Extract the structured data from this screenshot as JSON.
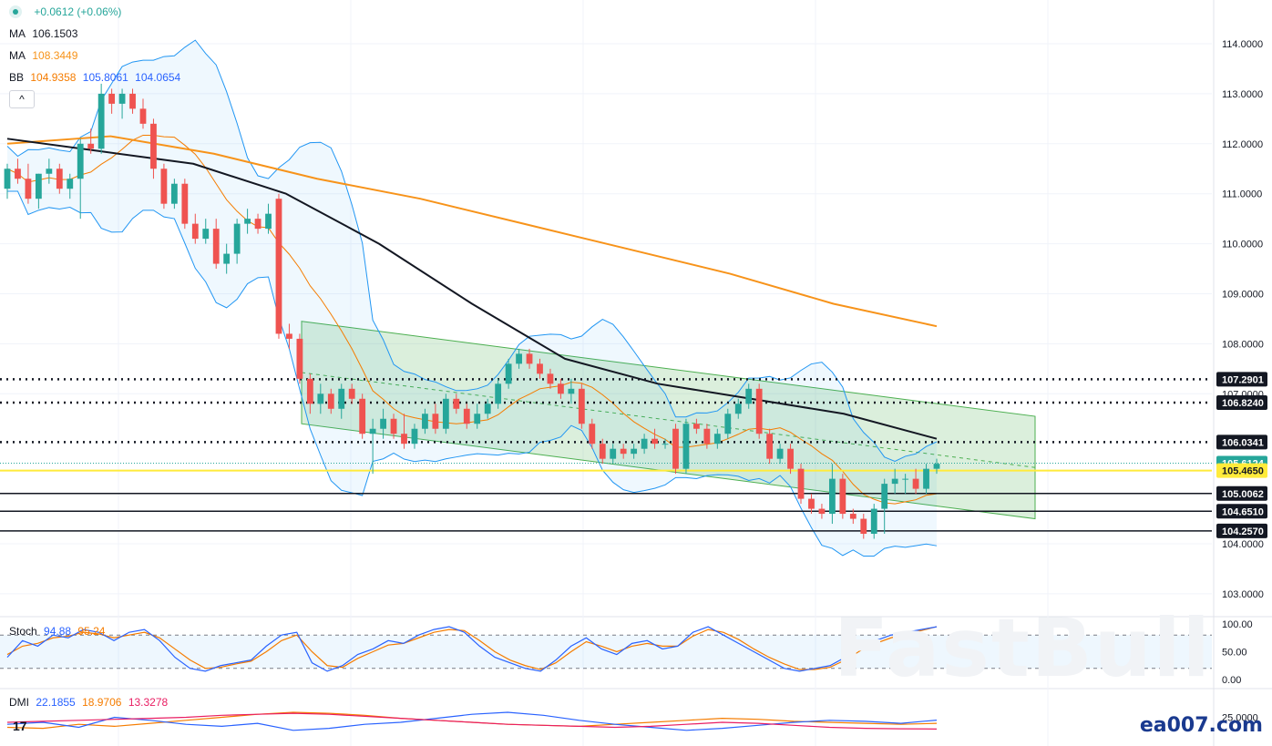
{
  "header": {
    "change": "+0.0612 (+0.06%)",
    "ma1_label": "MA",
    "ma1_value": "106.1503",
    "ma2_label": "MA",
    "ma2_value": "108.3449",
    "bb_label": "BB",
    "bb_basis": "104.9358",
    "bb_upper": "105.8061",
    "bb_lower": "104.0654",
    "collapse": "^"
  },
  "stoch": {
    "label": "Stoch",
    "k": "94.88",
    "d": "95.24"
  },
  "dmi": {
    "label": "DMI",
    "plus": "22.1855",
    "minus": "18.9706",
    "adx": "13.3278"
  },
  "watermark": {
    "brand": "FastBull",
    "site": "ea007.com"
  },
  "platform_logo": "17",
  "colors": {
    "up": "#26a69a",
    "down": "#ef5350",
    "ma_fast": "#131722",
    "ma_slow": "#f7931a",
    "bb": "#2962ff",
    "bb_basis": "#f57c00",
    "channel": "#4caf50",
    "highlight": "#ffeb3b"
  },
  "chart_data": [
    {
      "type": "candlestick",
      "y_axis_ticks": [
        "114.0000",
        "113.0000",
        "112.0000",
        "111.0000",
        "110.0000",
        "109.0000",
        "108.0000",
        "107.0000",
        "104.0000",
        "103.0000"
      ],
      "ylim": [
        102.5,
        114.6
      ],
      "price_tags": [
        {
          "value": "107.2901",
          "style": "dotted",
          "color": "#131722"
        },
        {
          "value": "106.8240",
          "style": "dotted",
          "color": "#131722"
        },
        {
          "value": "106.0341",
          "style": "dotted",
          "color": "#131722"
        },
        {
          "value": "105.6124",
          "style": "current",
          "color": "#26a69a"
        },
        {
          "value": "105.4650",
          "style": "solid",
          "color": "#ffeb3b"
        },
        {
          "value": "105.0062",
          "style": "solid",
          "color": "#131722"
        },
        {
          "value": "104.6510",
          "style": "solid",
          "color": "#131722"
        },
        {
          "value": "104.2570",
          "style": "solid",
          "color": "#131722"
        }
      ],
      "channel": {
        "upper_start": 108.45,
        "upper_end": 106.55,
        "lower_start": 106.4,
        "lower_end": 104.5
      },
      "ma_fast_path": [
        112.1,
        111.85,
        111.6,
        111.0,
        110.0,
        108.8,
        107.7,
        107.2,
        106.9,
        106.6,
        106.1
      ],
      "ma_slow_path": [
        112.0,
        112.15,
        111.8,
        111.3,
        110.9,
        110.4,
        109.9,
        109.4,
        108.8,
        108.35
      ],
      "candles": [
        {
          "o": 111.1,
          "h": 111.6,
          "l": 110.9,
          "c": 111.5
        },
        {
          "o": 111.5,
          "h": 111.7,
          "l": 111.2,
          "c": 111.3
        },
        {
          "o": 111.3,
          "h": 111.6,
          "l": 110.8,
          "c": 110.9
        },
        {
          "o": 110.9,
          "h": 111.4,
          "l": 110.7,
          "c": 111.4
        },
        {
          "o": 111.4,
          "h": 111.7,
          "l": 111.2,
          "c": 111.5
        },
        {
          "o": 111.5,
          "h": 111.6,
          "l": 111.0,
          "c": 111.1
        },
        {
          "o": 111.1,
          "h": 111.4,
          "l": 110.9,
          "c": 111.3
        },
        {
          "o": 111.3,
          "h": 112.1,
          "l": 110.5,
          "c": 112.0
        },
        {
          "o": 112.0,
          "h": 112.3,
          "l": 111.8,
          "c": 111.9
        },
        {
          "o": 111.9,
          "h": 113.2,
          "l": 111.8,
          "c": 113.0
        },
        {
          "o": 113.0,
          "h": 113.1,
          "l": 112.6,
          "c": 112.8
        },
        {
          "o": 112.8,
          "h": 113.1,
          "l": 112.5,
          "c": 113.0
        },
        {
          "o": 113.0,
          "h": 113.1,
          "l": 112.6,
          "c": 112.7
        },
        {
          "o": 112.7,
          "h": 112.9,
          "l": 112.3,
          "c": 112.4
        },
        {
          "o": 112.4,
          "h": 112.5,
          "l": 111.3,
          "c": 111.5
        },
        {
          "o": 111.5,
          "h": 111.6,
          "l": 110.7,
          "c": 110.8
        },
        {
          "o": 110.8,
          "h": 111.3,
          "l": 110.7,
          "c": 111.2
        },
        {
          "o": 111.2,
          "h": 111.3,
          "l": 110.3,
          "c": 110.4
        },
        {
          "o": 110.4,
          "h": 110.6,
          "l": 110.0,
          "c": 110.1
        },
        {
          "o": 110.1,
          "h": 110.5,
          "l": 110.0,
          "c": 110.3
        },
        {
          "o": 110.3,
          "h": 110.5,
          "l": 109.5,
          "c": 109.6
        },
        {
          "o": 109.6,
          "h": 110.0,
          "l": 109.4,
          "c": 109.8
        },
        {
          "o": 109.8,
          "h": 110.5,
          "l": 109.6,
          "c": 110.4
        },
        {
          "o": 110.4,
          "h": 110.7,
          "l": 110.2,
          "c": 110.5
        },
        {
          "o": 110.5,
          "h": 110.6,
          "l": 110.2,
          "c": 110.3
        },
        {
          "o": 110.3,
          "h": 110.8,
          "l": 110.2,
          "c": 110.6
        },
        {
          "o": 110.9,
          "h": 111.0,
          "l": 108.1,
          "c": 108.2
        },
        {
          "o": 108.2,
          "h": 108.4,
          "l": 107.9,
          "c": 108.1
        },
        {
          "o": 108.1,
          "h": 108.2,
          "l": 107.2,
          "c": 107.3
        },
        {
          "o": 107.3,
          "h": 107.4,
          "l": 106.6,
          "c": 106.8
        },
        {
          "o": 106.8,
          "h": 107.2,
          "l": 106.6,
          "c": 107.0
        },
        {
          "o": 107.0,
          "h": 107.1,
          "l": 106.6,
          "c": 106.7
        },
        {
          "o": 106.7,
          "h": 107.2,
          "l": 106.5,
          "c": 107.1
        },
        {
          "o": 107.1,
          "h": 107.2,
          "l": 106.8,
          "c": 106.9
        },
        {
          "o": 106.9,
          "h": 107.0,
          "l": 106.1,
          "c": 106.2
        },
        {
          "o": 106.2,
          "h": 106.5,
          "l": 105.4,
          "c": 106.3
        },
        {
          "o": 106.3,
          "h": 106.7,
          "l": 106.1,
          "c": 106.5
        },
        {
          "o": 106.5,
          "h": 106.6,
          "l": 106.1,
          "c": 106.2
        },
        {
          "o": 106.2,
          "h": 106.6,
          "l": 105.9,
          "c": 106.0
        },
        {
          "o": 106.0,
          "h": 106.4,
          "l": 105.9,
          "c": 106.3
        },
        {
          "o": 106.3,
          "h": 106.7,
          "l": 106.2,
          "c": 106.6
        },
        {
          "o": 106.6,
          "h": 106.8,
          "l": 106.2,
          "c": 106.3
        },
        {
          "o": 106.3,
          "h": 107.0,
          "l": 106.2,
          "c": 106.9
        },
        {
          "o": 106.9,
          "h": 107.0,
          "l": 106.6,
          "c": 106.7
        },
        {
          "o": 106.7,
          "h": 106.8,
          "l": 106.3,
          "c": 106.4
        },
        {
          "o": 106.4,
          "h": 106.8,
          "l": 106.3,
          "c": 106.6
        },
        {
          "o": 106.6,
          "h": 106.9,
          "l": 106.5,
          "c": 106.8
        },
        {
          "o": 106.8,
          "h": 107.3,
          "l": 106.7,
          "c": 107.2
        },
        {
          "o": 107.2,
          "h": 107.7,
          "l": 107.1,
          "c": 107.6
        },
        {
          "o": 107.6,
          "h": 107.9,
          "l": 107.5,
          "c": 107.8
        },
        {
          "o": 107.8,
          "h": 107.9,
          "l": 107.5,
          "c": 107.6
        },
        {
          "o": 107.6,
          "h": 107.7,
          "l": 107.3,
          "c": 107.4
        },
        {
          "o": 107.4,
          "h": 107.5,
          "l": 107.1,
          "c": 107.2
        },
        {
          "o": 107.2,
          "h": 107.3,
          "l": 106.9,
          "c": 107.0
        },
        {
          "o": 107.0,
          "h": 107.3,
          "l": 106.8,
          "c": 107.1
        },
        {
          "o": 107.1,
          "h": 107.2,
          "l": 106.3,
          "c": 106.4
        },
        {
          "o": 106.4,
          "h": 106.5,
          "l": 105.9,
          "c": 106.0
        },
        {
          "o": 106.0,
          "h": 106.1,
          "l": 105.6,
          "c": 105.7
        },
        {
          "o": 105.7,
          "h": 106.0,
          "l": 105.6,
          "c": 105.9
        },
        {
          "o": 105.9,
          "h": 106.0,
          "l": 105.7,
          "c": 105.8
        },
        {
          "o": 105.8,
          "h": 106.0,
          "l": 105.7,
          "c": 105.9
        },
        {
          "o": 105.9,
          "h": 106.2,
          "l": 105.8,
          "c": 106.1
        },
        {
          "o": 106.1,
          "h": 106.3,
          "l": 105.9,
          "c": 106.0
        },
        {
          "o": 106.0,
          "h": 106.1,
          "l": 105.9,
          "c": 106.0
        },
        {
          "o": 106.3,
          "h": 106.4,
          "l": 105.4,
          "c": 105.5
        },
        {
          "o": 105.5,
          "h": 106.5,
          "l": 105.4,
          "c": 106.4
        },
        {
          "o": 106.4,
          "h": 106.5,
          "l": 106.2,
          "c": 106.3
        },
        {
          "o": 106.3,
          "h": 106.4,
          "l": 105.9,
          "c": 106.0
        },
        {
          "o": 106.0,
          "h": 106.3,
          "l": 105.9,
          "c": 106.2
        },
        {
          "o": 106.2,
          "h": 106.7,
          "l": 106.1,
          "c": 106.6
        },
        {
          "o": 106.6,
          "h": 106.9,
          "l": 106.5,
          "c": 106.8
        },
        {
          "o": 106.8,
          "h": 107.2,
          "l": 106.7,
          "c": 107.1
        },
        {
          "o": 107.1,
          "h": 107.2,
          "l": 106.1,
          "c": 106.2
        },
        {
          "o": 106.2,
          "h": 106.3,
          "l": 105.6,
          "c": 105.7
        },
        {
          "o": 105.7,
          "h": 106.0,
          "l": 105.6,
          "c": 105.9
        },
        {
          "o": 105.9,
          "h": 106.0,
          "l": 105.4,
          "c": 105.5
        },
        {
          "o": 105.5,
          "h": 105.6,
          "l": 104.8,
          "c": 104.9
        },
        {
          "o": 104.9,
          "h": 105.0,
          "l": 104.6,
          "c": 104.7
        },
        {
          "o": 104.7,
          "h": 104.8,
          "l": 104.5,
          "c": 104.6
        },
        {
          "o": 104.6,
          "h": 105.6,
          "l": 104.4,
          "c": 105.3
        },
        {
          "o": 105.3,
          "h": 105.4,
          "l": 104.5,
          "c": 104.6
        },
        {
          "o": 104.6,
          "h": 104.7,
          "l": 104.4,
          "c": 104.5
        },
        {
          "o": 104.5,
          "h": 104.6,
          "l": 104.1,
          "c": 104.2
        },
        {
          "o": 104.2,
          "h": 104.8,
          "l": 104.1,
          "c": 104.7
        },
        {
          "o": 104.7,
          "h": 105.3,
          "l": 104.2,
          "c": 105.2
        },
        {
          "o": 105.2,
          "h": 105.5,
          "l": 105.0,
          "c": 105.3
        },
        {
          "o": 105.3,
          "h": 105.4,
          "l": 105.0,
          "c": 105.3
        },
        {
          "o": 105.3,
          "h": 105.5,
          "l": 105.0,
          "c": 105.1
        },
        {
          "o": 105.1,
          "h": 105.6,
          "l": 105.0,
          "c": 105.5
        },
        {
          "o": 105.5,
          "h": 105.7,
          "l": 105.4,
          "c": 105.6
        }
      ]
    },
    {
      "type": "line",
      "name": "Stoch",
      "y_axis_ticks": [
        "100.00",
        "50.00",
        "0.00"
      ],
      "ylim": [
        0,
        100
      ],
      "k": [
        40,
        70,
        60,
        80,
        75,
        90,
        85,
        70,
        85,
        90,
        70,
        40,
        20,
        15,
        25,
        30,
        35,
        60,
        80,
        85,
        30,
        15,
        25,
        45,
        55,
        70,
        65,
        80,
        90,
        95,
        85,
        60,
        40,
        30,
        20,
        15,
        35,
        60,
        75,
        55,
        45,
        65,
        70,
        55,
        60,
        85,
        95,
        80,
        65,
        50,
        35,
        20,
        15,
        20,
        25,
        40,
        60,
        70,
        80,
        85,
        90,
        94.88
      ],
      "d": [
        45,
        60,
        65,
        75,
        78,
        85,
        82,
        75,
        80,
        85,
        75,
        55,
        35,
        20,
        22,
        28,
        33,
        50,
        70,
        80,
        50,
        25,
        22,
        38,
        50,
        62,
        65,
        75,
        85,
        90,
        88,
        70,
        50,
        35,
        25,
        18,
        30,
        50,
        68,
        60,
        50,
        60,
        65,
        60,
        60,
        78,
        90,
        85,
        72,
        55,
        40,
        28,
        18,
        18,
        22,
        35,
        52,
        65,
        75,
        82,
        88,
        95.24
      ]
    },
    {
      "type": "line",
      "name": "DMI",
      "y_axis_ticks": [
        "25.0000"
      ],
      "plus_di": [
        18,
        20,
        15,
        25,
        22,
        18,
        16,
        19,
        12,
        14,
        18,
        20,
        24,
        28,
        30,
        27,
        22,
        18,
        15,
        12,
        14,
        17,
        20,
        22,
        21,
        19,
        22.1855
      ],
      "minus_di": [
        15,
        14,
        18,
        16,
        19,
        22,
        25,
        28,
        30,
        29,
        27,
        24,
        22,
        20,
        18,
        17,
        16,
        18,
        20,
        22,
        24,
        23,
        21,
        20,
        19,
        18,
        18.9706
      ],
      "adx": [
        20,
        21,
        22,
        23,
        24,
        25,
        27,
        28,
        29,
        28,
        26,
        24,
        22,
        20,
        18,
        17,
        16,
        15,
        16,
        18,
        20,
        19,
        17,
        15,
        14,
        13.5,
        13.3278
      ]
    }
  ]
}
